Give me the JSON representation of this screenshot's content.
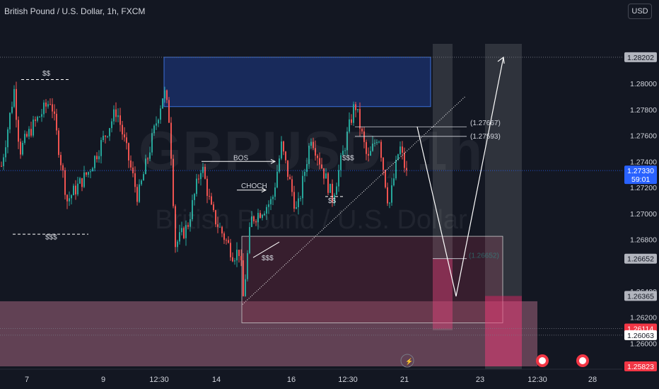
{
  "header": {
    "title": "British Pound / U.S. Dollar, 1h, FXCM",
    "currency_button": "USD"
  },
  "watermark": {
    "symbol": "GBPUSD, 1h",
    "description": "British Pound / U.S. Dollar"
  },
  "colors": {
    "background": "#131722",
    "bull": "#26a69a",
    "bear": "#ef5350",
    "supply_zone": "#1e3a8a",
    "demand_zone": "#f48fb1",
    "current_price_tag": "#2962ff",
    "red_tag": "#f23645",
    "grey_tag": "#b2b5be"
  },
  "chart_data": {
    "type": "candlestick",
    "ylim": [
      1.25823,
      1.28305
    ],
    "y_ticks": [
      "1.28000",
      "1.27800",
      "1.27600",
      "1.27400",
      "1.27200",
      "1.27000",
      "1.26800",
      "1.26400",
      "1.26200",
      "1.26000"
    ],
    "x_tick_labels": [
      "7",
      "9",
      "12:30",
      "14",
      "16",
      "12:30",
      "21",
      "23",
      "12:30",
      "28"
    ],
    "price_tags": [
      {
        "label": "1.28202",
        "price": 1.28202,
        "style": "grey"
      },
      {
        "label": "1.27330",
        "price": 1.2733,
        "style": "blue",
        "sub": "59:01"
      },
      {
        "label": "1.26652",
        "price": 1.26652,
        "style": "grey"
      },
      {
        "label": "1.26365",
        "price": 1.26365,
        "style": "grey"
      },
      {
        "label": "1.26114",
        "price": 1.26114,
        "style": "red"
      },
      {
        "label": "1.26063",
        "price": 1.26063,
        "style": "white"
      },
      {
        "label": "1.25823",
        "price": 1.25823,
        "style": "red"
      }
    ],
    "annotations": {
      "liquidity_labels": [
        "$$",
        "$$$",
        "$$$",
        "$$",
        "$$$"
      ],
      "structure_labels": [
        "BOS",
        "CHOCH"
      ],
      "level_labels": [
        "(1.27667)",
        "(1.27593)",
        "(1.26652)"
      ]
    },
    "zones": {
      "supply": {
        "top": 1.28202,
        "bottom": 1.27822
      },
      "demand_box": {
        "top": 1.26824,
        "bottom": 1.26158
      },
      "demand_band": {
        "top": 1.26324,
        "bottom": 1.25823
      }
    },
    "projection_path": [
      1.27667,
      1.26362,
      1.28202
    ],
    "candles_ohlc_generated": true,
    "legend": "none"
  }
}
